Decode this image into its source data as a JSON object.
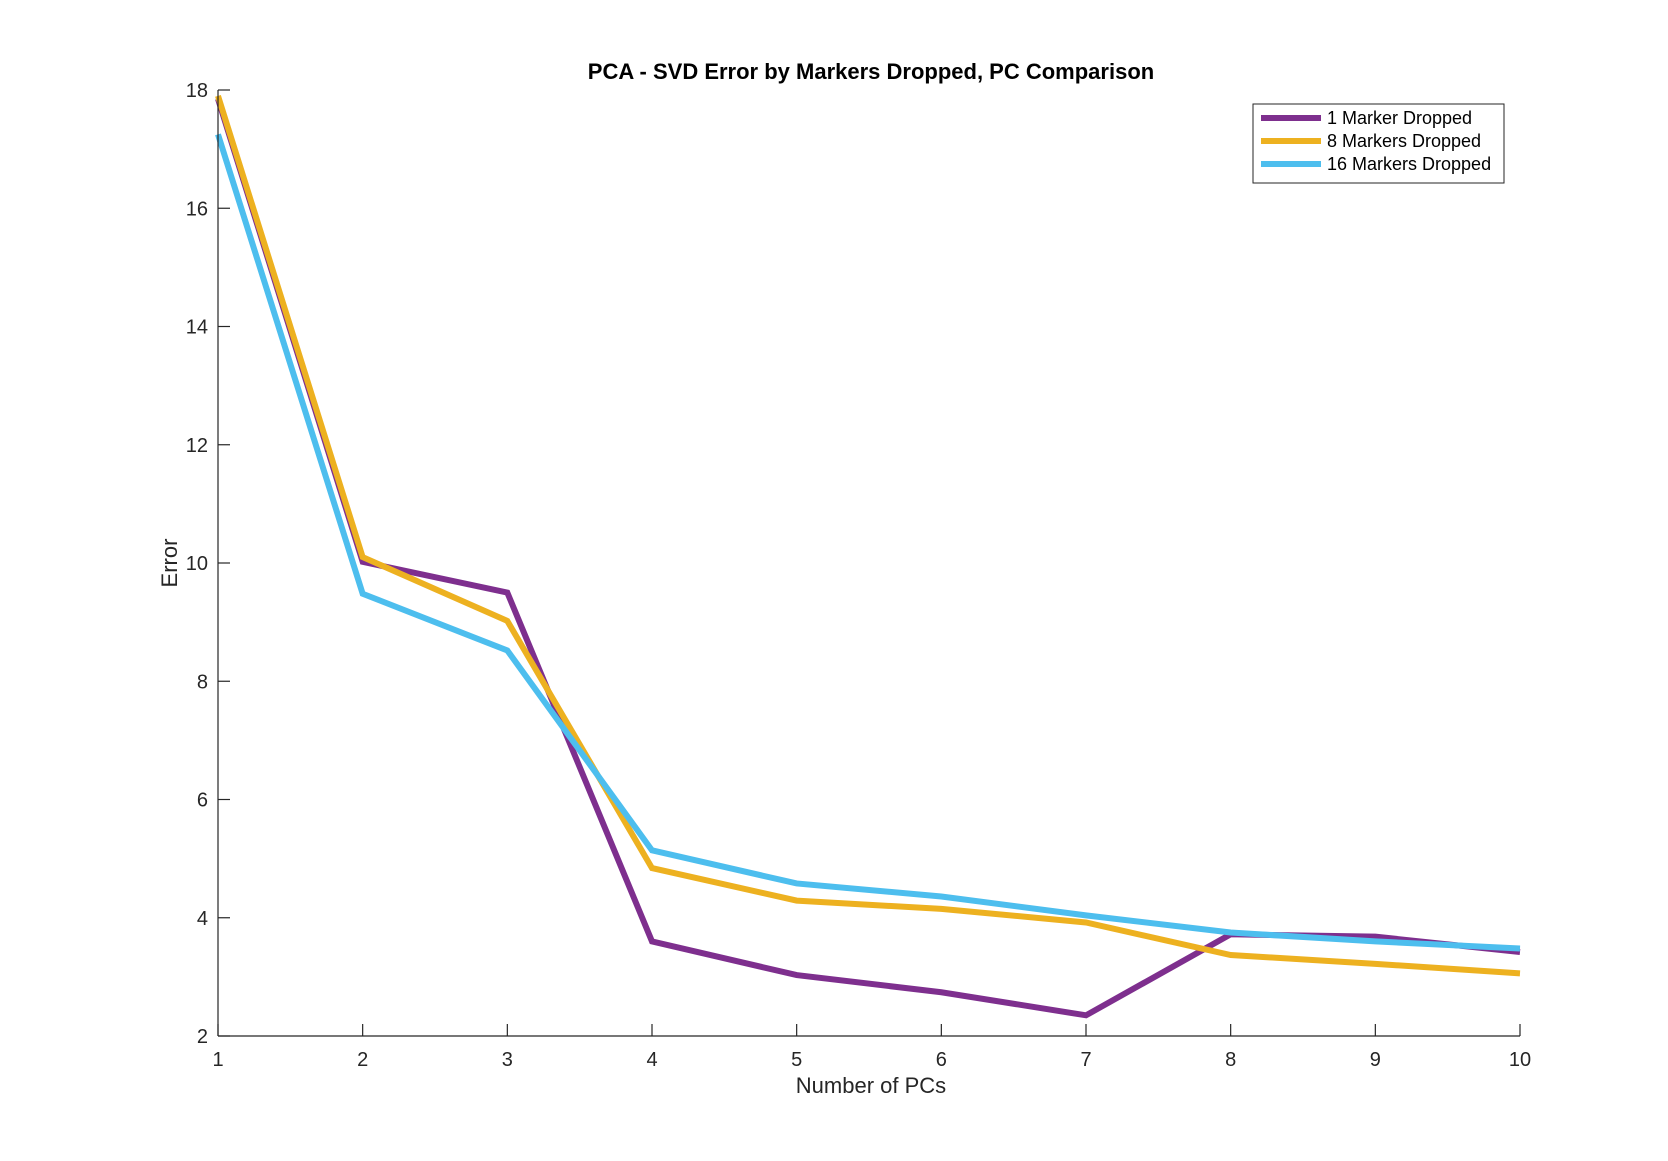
{
  "chart_data": {
    "type": "line",
    "title": "PCA - SVD Error by Markers Dropped, PC Comparison",
    "xlabel": "Number of PCs",
    "ylabel": "Error",
    "x": [
      1,
      2,
      3,
      4,
      5,
      6,
      7,
      8,
      9,
      10
    ],
    "xlim": [
      1,
      10
    ],
    "ylim": [
      2,
      18
    ],
    "xticks": [
      "1",
      "2",
      "3",
      "4",
      "5",
      "6",
      "7",
      "8",
      "9",
      "10"
    ],
    "yticks": [
      "2",
      "4",
      "6",
      "8",
      "10",
      "12",
      "14",
      "16",
      "18"
    ],
    "grid": false,
    "legend_position": "top-right",
    "series": [
      {
        "name": "1 Marker Dropped",
        "color": "#7E2F8E",
        "values": [
          17.85,
          10.02,
          9.5,
          3.6,
          3.03,
          2.74,
          2.35,
          3.72,
          3.68,
          3.42
        ]
      },
      {
        "name": "8 Markers Dropped",
        "color": "#EDB120",
        "values": [
          17.9,
          10.1,
          9.02,
          4.84,
          4.29,
          4.15,
          3.92,
          3.37,
          3.22,
          3.06
        ]
      },
      {
        "name": "16 Markers Dropped",
        "color": "#4DBEEE",
        "values": [
          17.25,
          9.48,
          8.52,
          5.14,
          4.58,
          4.36,
          4.04,
          3.75,
          3.6,
          3.48
        ]
      }
    ]
  }
}
